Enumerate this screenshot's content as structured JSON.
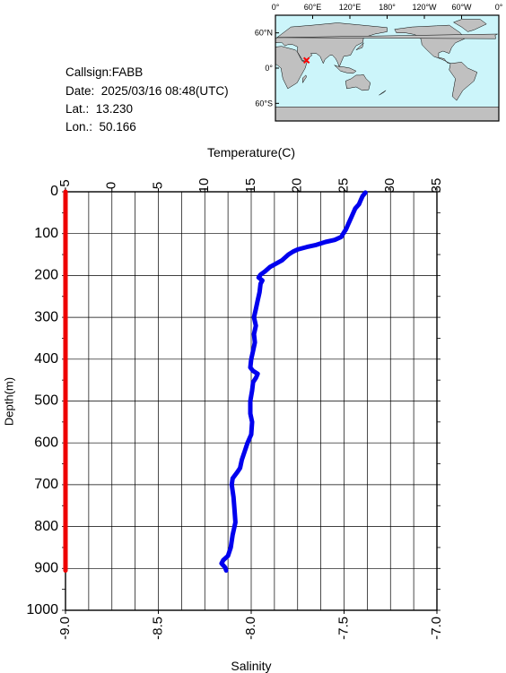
{
  "info": {
    "callsign": "Callsign:FABB",
    "date": "Date:  2025/03/16 08:48(UTC)",
    "lat": "Lat.:  13.230",
    "lon": "Lon.:  50.166"
  },
  "map": {
    "top_labels": [
      "0°",
      "60°E",
      "120°E",
      "180°",
      "120°W",
      "60°W",
      "0°"
    ],
    "left_labels": [
      "60°N",
      "0°",
      "60°S"
    ],
    "ocean_color": "#ccf5fa",
    "land_color": "#c0c0c0",
    "marker_color": "#ff0000",
    "marker": {
      "lat": 13.23,
      "lon": 50.166
    }
  },
  "chart_data": {
    "type": "line",
    "title": "",
    "x_top_label": "Temperature(C)",
    "x_top_ticks": [
      "-5",
      "0",
      "5",
      "10",
      "15",
      "20",
      "25",
      "30",
      "35"
    ],
    "x_top_range": [
      -5,
      35
    ],
    "x_bottom_label": "Salinity",
    "x_bottom_ticks": [
      "-9.0",
      "-8.5",
      "-8.0",
      "-7.5",
      "-7.0"
    ],
    "x_bottom_range": [
      -9.0,
      -7.0
    ],
    "ylabel": "Depth(m)",
    "y_ticks": [
      "0",
      "100",
      "200",
      "300",
      "400",
      "500",
      "600",
      "700",
      "800",
      "900",
      "1000"
    ],
    "y_range": [
      0,
      1000
    ],
    "y_inverted": true,
    "grid": true,
    "series": [
      {
        "name": "Temperature",
        "color": "#0000ee",
        "axis": "top",
        "points": [
          [
            27.3,
            2
          ],
          [
            27.0,
            10
          ],
          [
            26.8,
            20
          ],
          [
            26.6,
            30
          ],
          [
            26.2,
            40
          ],
          [
            26.0,
            50
          ],
          [
            25.8,
            60
          ],
          [
            25.6,
            70
          ],
          [
            25.4,
            80
          ],
          [
            25.2,
            90
          ],
          [
            24.9,
            100
          ],
          [
            24.7,
            108
          ],
          [
            24.0,
            115
          ],
          [
            23.0,
            120
          ],
          [
            22.0,
            127
          ],
          [
            21.0,
            132
          ],
          [
            20.0,
            138
          ],
          [
            19.5,
            143
          ],
          [
            19.0,
            150
          ],
          [
            18.6,
            158
          ],
          [
            18.3,
            164
          ],
          [
            17.8,
            170
          ],
          [
            17.0,
            180
          ],
          [
            16.5,
            190
          ],
          [
            16.0,
            198
          ],
          [
            15.8,
            205
          ],
          [
            16.2,
            212
          ],
          [
            16.0,
            220
          ],
          [
            15.9,
            240
          ],
          [
            15.7,
            260
          ],
          [
            15.5,
            280
          ],
          [
            15.3,
            300
          ],
          [
            15.5,
            320
          ],
          [
            15.3,
            340
          ],
          [
            15.4,
            360
          ],
          [
            15.2,
            380
          ],
          [
            15.0,
            400
          ],
          [
            14.9,
            420
          ],
          [
            15.2,
            428
          ],
          [
            15.7,
            435
          ],
          [
            15.5,
            445
          ],
          [
            15.2,
            455
          ],
          [
            15.1,
            475
          ],
          [
            14.9,
            500
          ],
          [
            14.9,
            530
          ],
          [
            15.1,
            550
          ],
          [
            15.0,
            580
          ],
          [
            14.6,
            600
          ],
          [
            14.3,
            620
          ],
          [
            14.0,
            640
          ],
          [
            13.8,
            660
          ],
          [
            13.5,
            670
          ],
          [
            13.0,
            685
          ],
          [
            12.9,
            700
          ],
          [
            13.1,
            730
          ],
          [
            13.2,
            760
          ],
          [
            13.3,
            790
          ],
          [
            13.0,
            820
          ],
          [
            12.8,
            850
          ],
          [
            12.5,
            870
          ],
          [
            12.0,
            880
          ],
          [
            11.8,
            888
          ],
          [
            12.2,
            898
          ],
          [
            12.3,
            905
          ]
        ]
      },
      {
        "name": "Salinity",
        "color": "#ee0000",
        "axis": "bottom",
        "points": [
          [
            -9.0,
            0
          ],
          [
            -9.0,
            905
          ]
        ]
      }
    ]
  }
}
